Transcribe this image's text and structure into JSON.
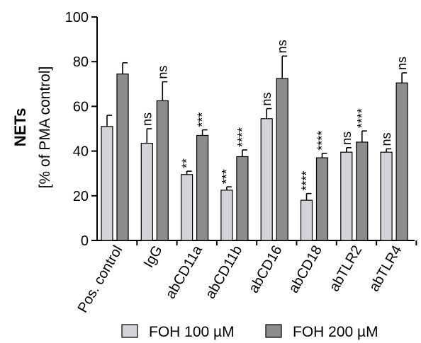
{
  "chart_data": {
    "type": "bar",
    "ylabel": "NETs",
    "ylabel_sub": "[% of PMA control]",
    "ylim": [
      0,
      100
    ],
    "yticks": [
      0,
      20,
      40,
      60,
      80,
      100
    ],
    "categories": [
      "Pos. control",
      "IgG",
      "abCD11a",
      "abCD11b",
      "abCD16",
      "abCD18",
      "abTLR2",
      "abTLR4"
    ],
    "series": [
      {
        "name": "FOH 100 µM",
        "color": "#d4d4d8",
        "values": [
          51,
          43.5,
          29.5,
          22.5,
          54.5,
          18,
          39.5,
          39.5
        ],
        "errors": [
          5,
          6.5,
          1.5,
          1.5,
          4.5,
          3,
          2,
          1.5
        ],
        "significance": [
          "",
          "ns",
          "**",
          "***",
          "ns",
          "****",
          "ns",
          "ns"
        ]
      },
      {
        "name": "FOH 200 µM",
        "color": "#8c8c8c",
        "values": [
          74.5,
          62.5,
          47,
          37.5,
          72.5,
          37,
          44,
          70.5
        ],
        "errors": [
          5,
          8.5,
          2.5,
          3,
          10,
          2,
          5,
          4.5
        ],
        "significance": [
          "",
          "ns",
          "***",
          "****",
          "ns",
          "****",
          "****",
          "ns"
        ]
      }
    ],
    "legend_position": "bottom"
  }
}
